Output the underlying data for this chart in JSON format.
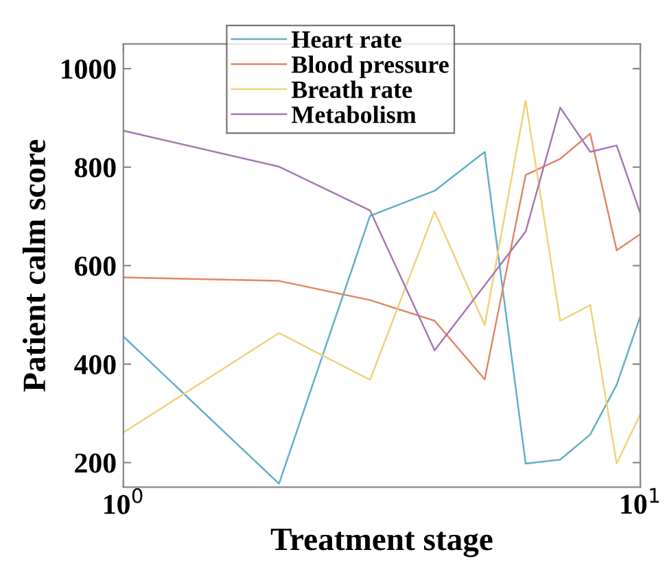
{
  "chart_data": {
    "type": "line",
    "xlabel": "Treatment stage",
    "ylabel": "Patient calm score",
    "log": "x",
    "x": [
      1,
      2,
      3,
      4,
      5,
      6,
      7,
      8,
      9,
      10
    ],
    "xlim": [
      1,
      10
    ],
    "xticks": [
      {
        "value": 1,
        "label": "10$^{0}$"
      },
      {
        "value": 10,
        "label": "10$^{1}$"
      }
    ],
    "ylim": [
      150,
      1050
    ],
    "yticks": [
      200,
      400,
      600,
      800,
      1000
    ],
    "legend": "top",
    "grid": false,
    "series": [
      {
        "name": "Heart rate",
        "color": "#62afc9",
        "values": [
          456,
          157,
          701,
          752,
          831,
          198,
          206,
          257,
          358,
          497
        ]
      },
      {
        "name": "Blood pressure",
        "color": "#e0866a",
        "values": [
          576,
          569,
          530,
          488,
          369,
          784,
          817,
          868,
          631,
          664
        ]
      },
      {
        "name": "Breath rate",
        "color": "#efd27a",
        "values": [
          261,
          463,
          368,
          710,
          479,
          935,
          488,
          520,
          198,
          298
        ]
      },
      {
        "name": "Metabolism",
        "color": "#a578b4",
        "values": [
          874,
          801,
          712,
          428,
          560,
          669,
          921,
          831,
          844,
          706
        ]
      }
    ]
  }
}
